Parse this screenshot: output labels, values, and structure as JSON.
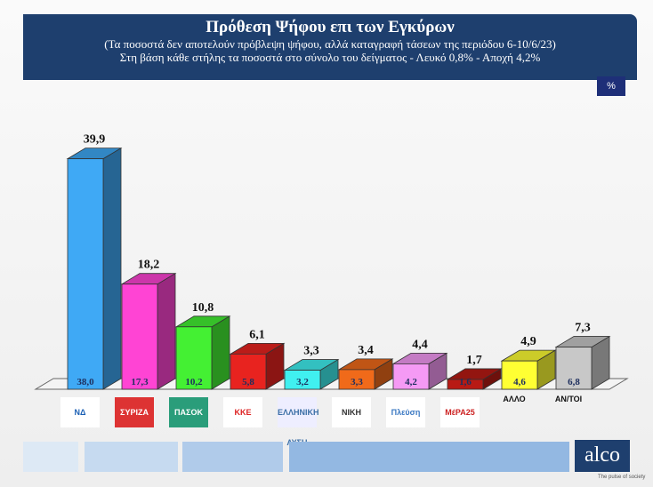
{
  "chart_data": {
    "type": "bar",
    "title": "Πρόθεση Ψήφου επι των Εγκύρων",
    "subtitle": [
      "(Τα ποσοστά δεν αποτελούν πρόβλεψη ψήφου, αλλά καταγραφή τάσεων της περιόδου  6-10/6/23)",
      "Στη βάση κάθε στήλης τα ποσοστά στο σύνολο του δείγματος - Λευκό 0,8% - Αποχή 4,2%"
    ],
    "unit_badge": "%",
    "categories": [
      "ΝΔ",
      "ΣΥΡΙΖΑ",
      "ΠΑΣΟΚ",
      "ΚΚΕ",
      "ΕΛΛΗΝΙΚΗ ΛΥΣΗ",
      "ΝΙΚΗ",
      "Πλεύση Ελευθερίας",
      "ΜέΡΑ25",
      "ΑΛΛΟ",
      "ΑΝ/ΤΟΙ"
    ],
    "series": [
      {
        "name": "valid",
        "values": [
          39.9,
          18.2,
          10.8,
          6.1,
          3.3,
          3.4,
          4.4,
          1.7,
          4.9,
          7.3
        ],
        "labels": [
          "39,9",
          "18,2",
          "10,8",
          "6,1",
          "3,3",
          "3,4",
          "4,4",
          "1,7",
          "4,9",
          "7,3"
        ]
      },
      {
        "name": "sample",
        "values": [
          38.0,
          17.3,
          10.2,
          5.8,
          3.2,
          3.3,
          4.2,
          1.6,
          4.6,
          6.8
        ],
        "labels": [
          "38,0",
          "17,3",
          "10,2",
          "5,8",
          "3,2",
          "3,3",
          "4,2",
          "1,6",
          "4,6",
          "6,8"
        ]
      }
    ],
    "colors": [
      "#3fa9f5",
      "#ff44d4",
      "#44f033",
      "#e8231f",
      "#40f0f0",
      "#f06a1a",
      "#f59af5",
      "#b81a14",
      "#ffff33",
      "#c8c8c8"
    ],
    "ylim": [
      0,
      40
    ]
  },
  "logos": [
    "ΝΔ",
    "ΣΥΡΙΖΑ",
    "ΠΑΣΟΚ",
    "ΚΚΕ",
    "ΕΛΛΗΝΙΚΗ ΛΥΣΗ",
    "ΝΙΚΗ",
    "Πλεύση",
    "ΜέΡΑ25",
    "ΑΛΛΟ",
    "ΑΝ/ΤΟΙ"
  ],
  "brand": {
    "name": "alco",
    "tagline": "The pulse of society"
  }
}
